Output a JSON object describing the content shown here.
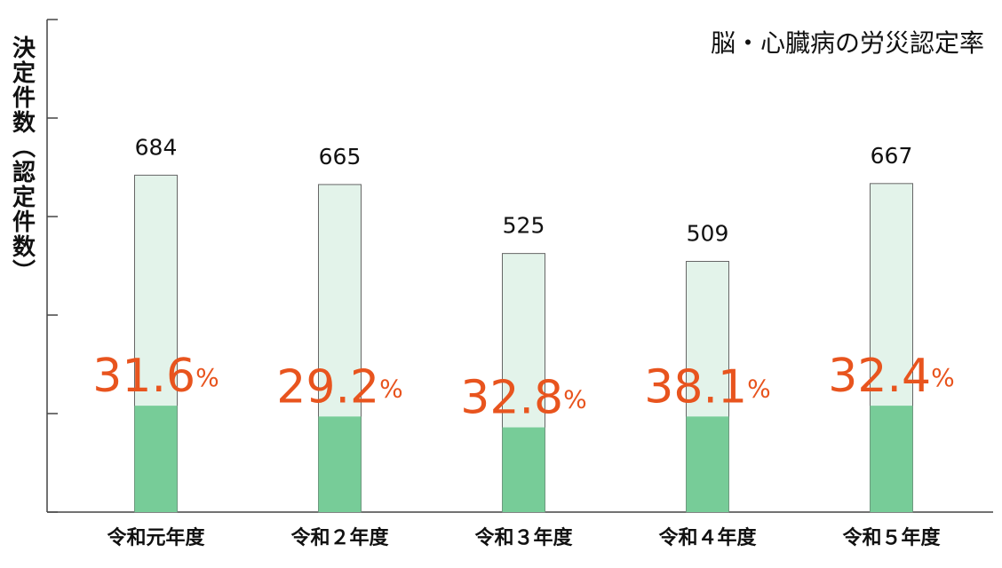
{
  "chart_data": {
    "type": "bar",
    "title": "脳・心臓病の労災認定率",
    "y_label": "決定件数（認定件数）",
    "categories": [
      "令和元年度",
      "令和２年度",
      "令和３年度",
      "令和４年度",
      "令和５年度"
    ],
    "series": [
      {
        "color": "#e3f3ea",
        "values": [
          684,
          665,
          525,
          509,
          667
        ]
      },
      {
        "color": "#77cc98",
        "values": [
          216,
          194,
          172,
          194,
          216
        ]
      }
    ],
    "rates": {
      "color": "#e8541e",
      "values": [
        31.6,
        29.2,
        32.8,
        38.1,
        32.4
      ],
      "value_labels": [
        "31.6%",
        "29.2%",
        "32.8%",
        "38.1%",
        "32.4%"
      ]
    },
    "ylim": [
      0,
      1000
    ],
    "yticks": [
      0,
      200,
      400,
      600,
      800,
      1000
    ]
  }
}
